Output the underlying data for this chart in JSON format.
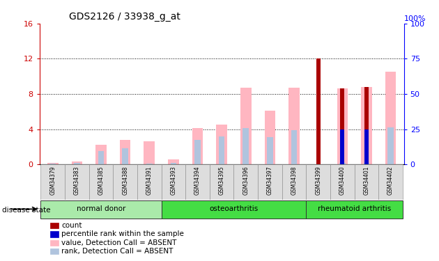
{
  "title": "GDS2126 / 33938_g_at",
  "samples": [
    "GSM34379",
    "GSM34383",
    "GSM34385",
    "GSM34388",
    "GSM34391",
    "GSM34393",
    "GSM34394",
    "GSM34395",
    "GSM34396",
    "GSM34397",
    "GSM34398",
    "GSM34399",
    "GSM34400",
    "GSM34401",
    "GSM34402"
  ],
  "value_absent": [
    0.15,
    0.3,
    2.2,
    2.8,
    2.6,
    0.6,
    4.1,
    4.5,
    8.7,
    6.1,
    8.7,
    0.0,
    8.6,
    8.8,
    10.5
  ],
  "rank_absent": [
    0.1,
    0.15,
    1.5,
    1.8,
    0.1,
    0.15,
    2.8,
    3.2,
    4.1,
    3.1,
    3.9,
    0.0,
    0.15,
    0.15,
    4.2
  ],
  "count_present": [
    0,
    0,
    0,
    0,
    0,
    0,
    0,
    0,
    0,
    0,
    0,
    12.0,
    8.6,
    8.8,
    0
  ],
  "rank_present": [
    0,
    0,
    0,
    0,
    0,
    0,
    0,
    0,
    0,
    0,
    0,
    0,
    4.0,
    4.0,
    0
  ],
  "ylim_left": [
    0,
    16
  ],
  "ylim_right": [
    0,
    100
  ],
  "yticks_left": [
    0,
    4,
    8,
    12,
    16
  ],
  "yticks_right": [
    0,
    25,
    50,
    75,
    100
  ],
  "color_count": "#AA0000",
  "color_rank_present": "#0000CC",
  "color_value_absent": "#FFB6C1",
  "color_rank_absent": "#B0C4DE",
  "group_defs": [
    {
      "name": "normal donor",
      "start": 0,
      "end": 4,
      "color": "#AAEAAA"
    },
    {
      "name": "osteoarthritis",
      "start": 5,
      "end": 10,
      "color": "#44DD44"
    },
    {
      "name": "rheumatoid arthritis",
      "start": 11,
      "end": 14,
      "color": "#44DD44"
    }
  ]
}
